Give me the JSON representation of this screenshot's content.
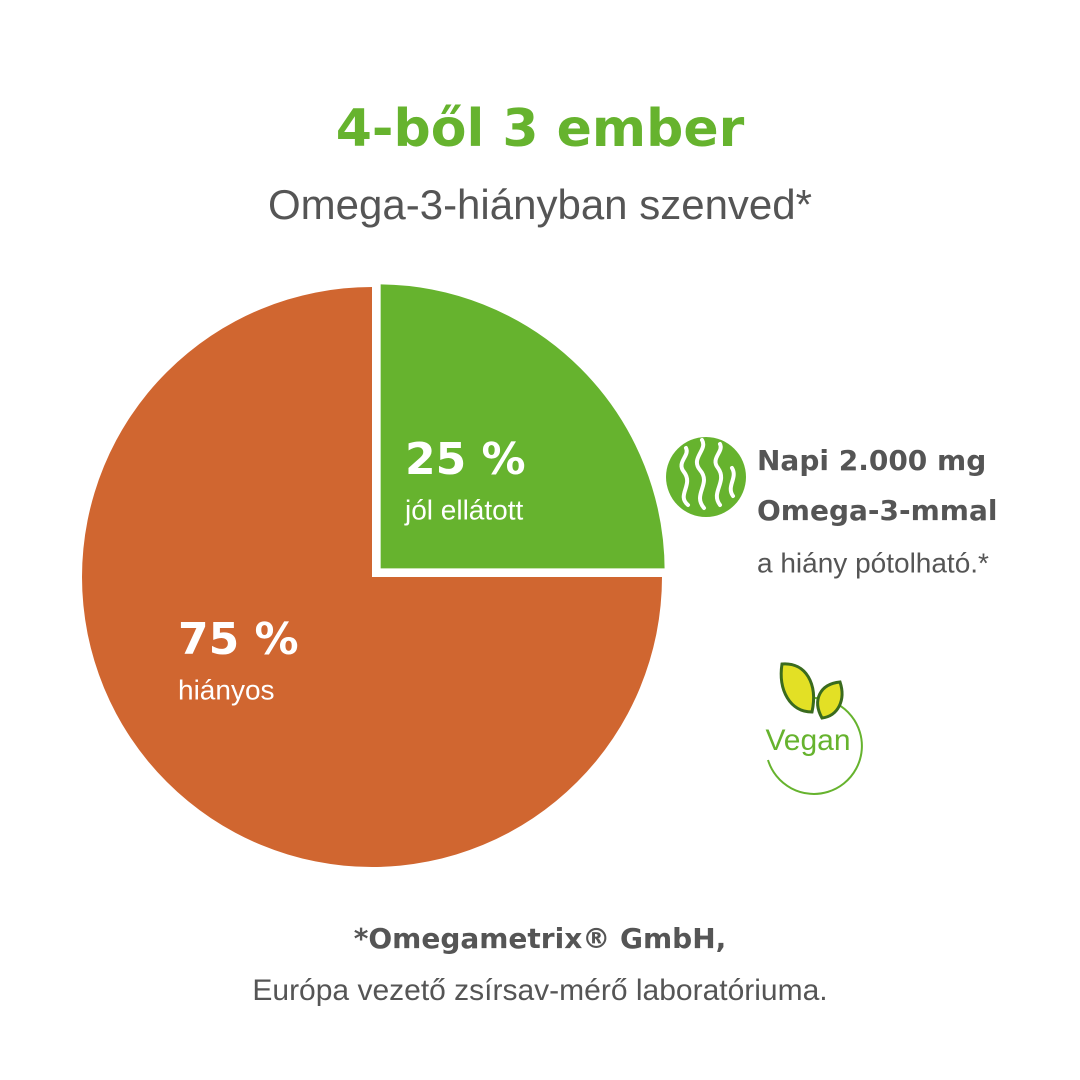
{
  "chart_data": {
    "type": "pie",
    "title": "4-ből 3 ember",
    "subtitle": "Omega-3-hiányban szenved*",
    "categories": [
      "jól ellátott",
      "hiányos"
    ],
    "values": [
      25,
      75
    ],
    "value_labels": [
      "25 %",
      "75 %"
    ],
    "colors": [
      "#66b32e",
      "#d06630"
    ],
    "annotation": [
      "Napi 2.000 mg",
      "Omega-3-mmal",
      "a hiány pótolható.*"
    ],
    "badge": "Vegan",
    "source": [
      "*Omegametrix® GmbH,",
      "Európa vezető zsírsav-mérő laboratóriuma."
    ]
  }
}
